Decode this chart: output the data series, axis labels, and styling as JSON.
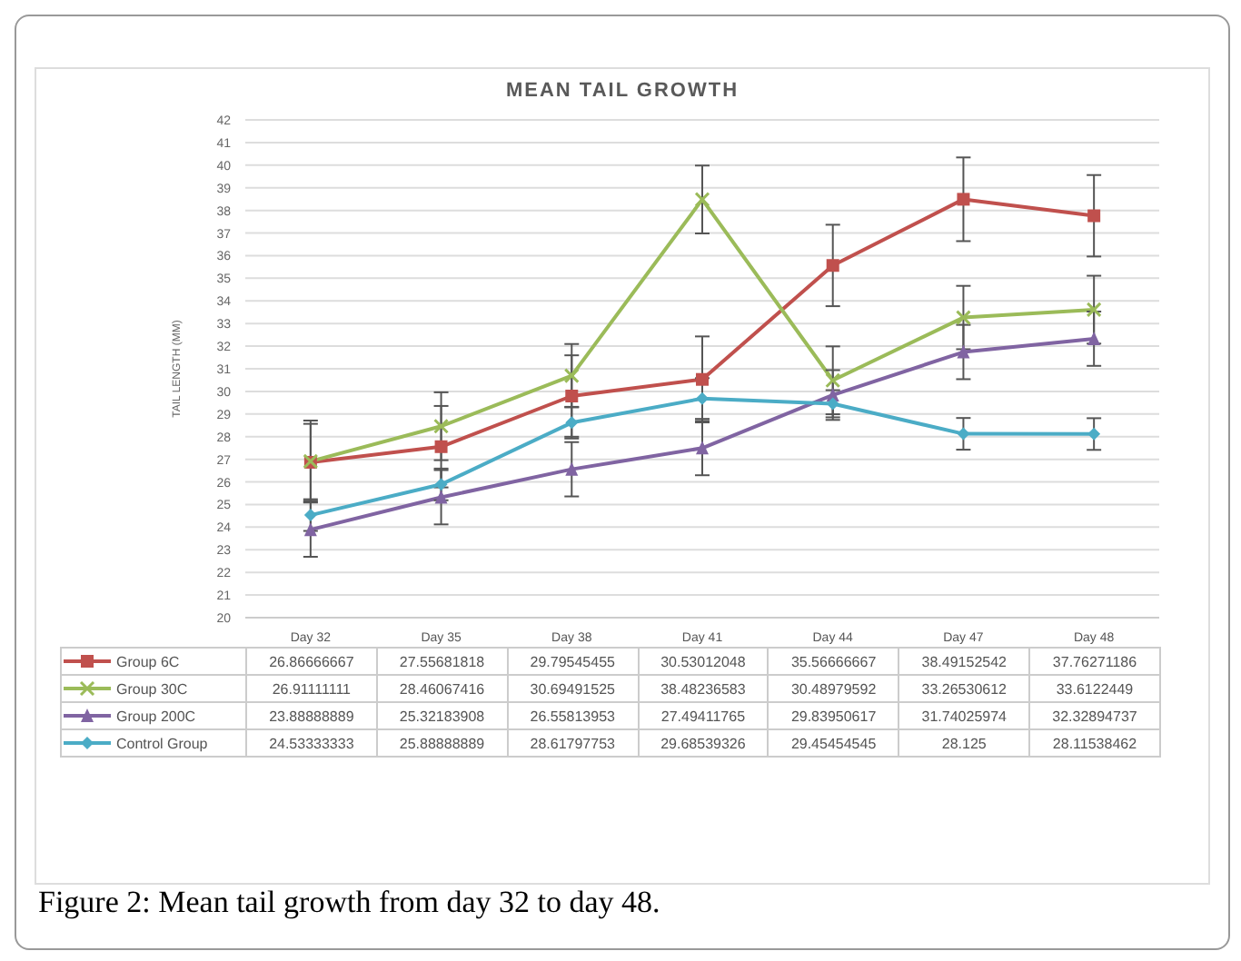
{
  "chart_data": {
    "type": "line",
    "title": "MEAN TAIL GROWTH",
    "ylabel": "TAIL LENGTH (MM)",
    "categories": [
      "Day 32",
      "Day 35",
      "Day 38",
      "Day 41",
      "Day 44",
      "Day 47",
      "Day 48"
    ],
    "ylim": [
      20,
      42
    ],
    "yticks": [
      20,
      21,
      22,
      23,
      24,
      25,
      26,
      27,
      28,
      29,
      30,
      31,
      32,
      33,
      34,
      35,
      36,
      37,
      38,
      39,
      40,
      41,
      42
    ],
    "grid": "y",
    "legend": "bottom",
    "data_labels": true,
    "series": [
      {
        "name": "Group 6C",
        "color": "#c0504d",
        "marker": "square",
        "values": [
          26.86666667,
          27.55681818,
          29.79545455,
          30.53012048,
          35.56666667,
          38.49152542,
          37.76271186
        ],
        "errors": [
          1.7,
          1.8,
          1.8,
          1.9,
          1.8,
          1.85,
          1.8
        ]
      },
      {
        "name": "Group 30C",
        "color": "#9bbb59",
        "marker": "cross",
        "values": [
          26.91111111,
          28.46067416,
          30.69491525,
          38.48236583,
          30.48979592,
          33.26530612,
          33.6122449
        ],
        "errors": [
          1.8,
          1.5,
          1.4,
          1.5,
          1.5,
          1.4,
          1.5
        ]
      },
      {
        "name": "Group 200C",
        "color": "#8064a2",
        "marker": "triangle",
        "values": [
          23.88888889,
          25.32183908,
          26.55813953,
          27.49411765,
          29.83950617,
          31.74025974,
          32.32894737
        ],
        "errors": [
          1.2,
          1.2,
          1.2,
          1.2,
          1.1,
          1.2,
          1.2
        ]
      },
      {
        "name": "Control Group",
        "color": "#4bacc6",
        "marker": "diamond",
        "values": [
          24.53333333,
          25.88888889,
          28.61797753,
          29.68539326,
          29.45454545,
          28.125,
          28.11538462
        ],
        "errors": [
          0.7,
          0.7,
          0.7,
          0.9,
          0.6,
          0.7,
          0.7
        ]
      }
    ],
    "annotations": [
      "Figure 2: Mean tail growth from day 32 to day 48."
    ]
  }
}
